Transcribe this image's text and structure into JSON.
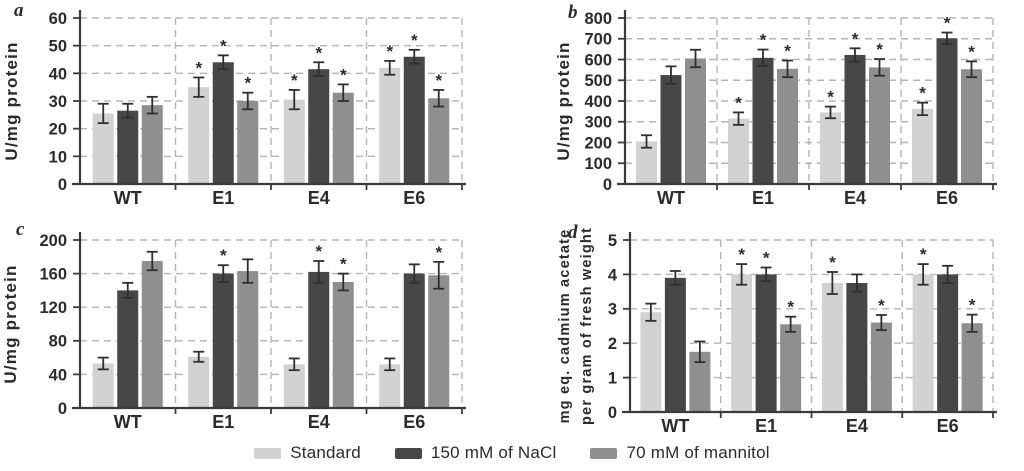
{
  "legend": {
    "items": [
      {
        "label": "Standard",
        "color": "#d2d2d2"
      },
      {
        "label": "150 mM of NaCl",
        "color": "#474747"
      },
      {
        "label": "70 mM of mannitol",
        "color": "#8f8f8f"
      }
    ]
  },
  "colors": {
    "axis": "#3b3b3b",
    "grid": "#b5b5b5",
    "text": "#2b2b2b",
    "error_bar": "#2f2f2f"
  },
  "significance_marker": "*",
  "chart_data": [
    {
      "type": "bar",
      "panel_label": "a",
      "ylabel_lines": [
        "U/mg protein"
      ],
      "ylim": [
        0,
        60
      ],
      "yticks": [
        0,
        10,
        20,
        30,
        40,
        50,
        60
      ],
      "categories": [
        "WT",
        "E1",
        "E4",
        "E6"
      ],
      "grid": "dashed",
      "series": [
        {
          "name": "Standard",
          "values": [
            25.5,
            35,
            30.5,
            42
          ],
          "errors": [
            3.5,
            3.5,
            3.5,
            2.5
          ],
          "sig": [
            false,
            true,
            true,
            true
          ]
        },
        {
          "name": "150 mM of NaCl",
          "values": [
            26.5,
            44,
            41.5,
            46
          ],
          "errors": [
            2.5,
            2.5,
            2.5,
            2.5
          ],
          "sig": [
            false,
            true,
            true,
            true
          ]
        },
        {
          "name": "70 mM of mannitol",
          "values": [
            28.5,
            30,
            33,
            31
          ],
          "errors": [
            3,
            3,
            3,
            3
          ],
          "sig": [
            false,
            true,
            true,
            true
          ]
        }
      ]
    },
    {
      "type": "bar",
      "panel_label": "b",
      "ylabel_lines": [
        "U/mg protein"
      ],
      "ylim": [
        0,
        800
      ],
      "yticks": [
        0,
        100,
        200,
        300,
        400,
        500,
        600,
        700,
        800
      ],
      "categories": [
        "WT",
        "E1",
        "E4",
        "E6"
      ],
      "grid": "dashed",
      "series": [
        {
          "name": "Standard",
          "values": [
            205,
            315,
            345,
            362
          ],
          "errors": [
            30,
            30,
            28,
            30
          ],
          "sig": [
            false,
            true,
            true,
            true
          ]
        },
        {
          "name": "150 mM of NaCl",
          "values": [
            525,
            608,
            622,
            702
          ],
          "errors": [
            42,
            40,
            32,
            28
          ],
          "sig": [
            false,
            true,
            true,
            true
          ]
        },
        {
          "name": "70 mM of mannitol",
          "values": [
            605,
            555,
            562,
            553
          ],
          "errors": [
            42,
            40,
            40,
            38
          ],
          "sig": [
            false,
            true,
            true,
            true
          ]
        }
      ]
    },
    {
      "type": "bar",
      "panel_label": "c",
      "ylabel_lines": [
        "U/mg protein"
      ],
      "ylim": [
        0,
        200
      ],
      "yticks": [
        0,
        40,
        80,
        120,
        160,
        200
      ],
      "categories": [
        "WT",
        "E1",
        "E4",
        "E6"
      ],
      "grid": "dashed",
      "series": [
        {
          "name": "Standard",
          "values": [
            53,
            61,
            52,
            52
          ],
          "errors": [
            7,
            6,
            7,
            7
          ],
          "sig": [
            false,
            false,
            false,
            false
          ]
        },
        {
          "name": "150 mM of NaCl",
          "values": [
            140,
            160,
            162,
            160
          ],
          "errors": [
            9,
            10,
            13,
            11
          ],
          "sig": [
            false,
            true,
            true,
            false
          ]
        },
        {
          "name": "70 mM of mannitol",
          "values": [
            175,
            163,
            150,
            158
          ],
          "errors": [
            11,
            14,
            10,
            16
          ],
          "sig": [
            false,
            false,
            true,
            true
          ]
        }
      ]
    },
    {
      "type": "bar",
      "panel_label": "d",
      "ylabel_lines": [
        "mg eq. cadmium acetate",
        "per gram of fresh weight"
      ],
      "ylim": [
        0,
        5
      ],
      "yticks": [
        0,
        1,
        2,
        3,
        4,
        5
      ],
      "categories": [
        "WT",
        "E1",
        "E4",
        "E6"
      ],
      "grid": "dashed",
      "series": [
        {
          "name": "Standard",
          "values": [
            2.9,
            4.0,
            3.75,
            4.0
          ],
          "errors": [
            0.25,
            0.3,
            0.32,
            0.3
          ],
          "sig": [
            false,
            true,
            true,
            true
          ]
        },
        {
          "name": "150 mM of NaCl",
          "values": [
            3.9,
            4.0,
            3.75,
            4.0
          ],
          "errors": [
            0.2,
            0.2,
            0.25,
            0.25
          ],
          "sig": [
            false,
            true,
            false,
            false
          ]
        },
        {
          "name": "70 mM of mannitol",
          "values": [
            1.75,
            2.55,
            2.6,
            2.58
          ],
          "errors": [
            0.3,
            0.22,
            0.22,
            0.25
          ],
          "sig": [
            false,
            true,
            true,
            true
          ]
        }
      ]
    }
  ]
}
